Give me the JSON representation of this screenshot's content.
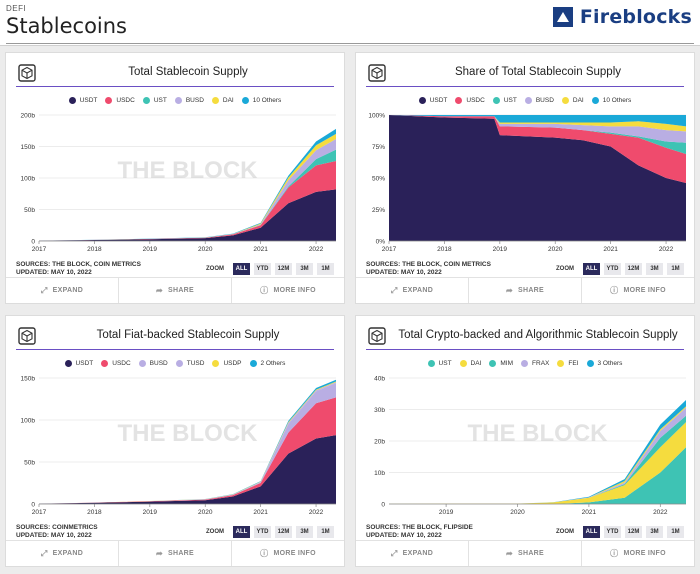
{
  "page": {
    "kicker": "DEFI",
    "title": "Stablecoins",
    "brand": "Fireblocks"
  },
  "colors": {
    "USDT": "#2a2159",
    "USDC": "#ef4b6d",
    "UST": "#3ec3b4",
    "BUSD": "#b9aee3",
    "DAI": "#f5dc3e",
    "TUSD": "#b9aee3",
    "USDP": "#f5dc3e",
    "MIM": "#3ec3b4",
    "FRAX": "#b9aee3",
    "FEI": "#f5dc3e",
    "Others": "#1aa9d8"
  },
  "watermark": "THE BLOCK",
  "zoom": {
    "label": "ZOOM",
    "options": [
      "ALL",
      "YTD",
      "12M",
      "3M",
      "1M"
    ],
    "active": "ALL"
  },
  "footer": {
    "expand": "EXPAND",
    "share": "SHARE",
    "more": "MORE INFO"
  },
  "cards": [
    {
      "title": "Total Stablecoin Supply",
      "sources": "SOURCES: THE BLOCK, COIN METRICS",
      "updated": "UPDATED: MAY 10, 2022"
    },
    {
      "title": "Share of Total Stablecoin Supply",
      "sources": "SOURCES: THE BLOCK, COIN METRICS",
      "updated": "UPDATED: MAY 10, 2022"
    },
    {
      "title": "Total Fiat-backed Stablecoin Supply",
      "sources": "SOURCES: COINMETRICS",
      "updated": "UPDATED: MAY 10, 2022"
    },
    {
      "title": "Total Crypto-backed and Algorithmic Stablecoin Supply",
      "sources": "SOURCES: THE BLOCK, FLIPSIDE",
      "updated": "UPDATED: MAY 10, 2022"
    }
  ],
  "chart_data": [
    {
      "type": "area",
      "stacked": true,
      "x": [
        "2017",
        "2018",
        "2019",
        "2020",
        "2020.5",
        "2021",
        "2021.5",
        "2022",
        "2022.36"
      ],
      "xticks": [
        "2017",
        "2018",
        "2019",
        "2020",
        "2021",
        "2022"
      ],
      "yticks": [
        "0",
        "50b",
        "100b",
        "150b",
        "200b"
      ],
      "ylim": [
        0,
        200
      ],
      "series": [
        {
          "name": "USDT",
          "values": [
            0.3,
            1.5,
            2.8,
            4.5,
            9,
            21,
            60,
            78,
            82
          ]
        },
        {
          "name": "USDC",
          "values": [
            0,
            0.2,
            0.5,
            0.7,
            1.5,
            4,
            25,
            42,
            45
          ]
        },
        {
          "name": "UST",
          "values": [
            0,
            0,
            0,
            0,
            0.1,
            0.3,
            1.5,
            10,
            18
          ]
        },
        {
          "name": "BUSD",
          "values": [
            0,
            0,
            0,
            0.2,
            0.3,
            1,
            10,
            14,
            17
          ]
        },
        {
          "name": "DAI",
          "values": [
            0,
            0.1,
            0.1,
            0.1,
            0.2,
            1.5,
            4,
            8,
            8
          ]
        },
        {
          "name": "10 Others",
          "values": [
            0,
            0.1,
            0.3,
            0.5,
            0.7,
            1,
            3,
            6,
            8
          ]
        }
      ]
    },
    {
      "type": "area",
      "stacked": true,
      "percent": true,
      "x": [
        "2017",
        "2018",
        "2018.9",
        "2019",
        "2020",
        "2020.5",
        "2021",
        "2021.5",
        "2022",
        "2022.36"
      ],
      "xticks": [
        "2017",
        "2018",
        "2019",
        "2020",
        "2021",
        "2022"
      ],
      "yticks": [
        "0%",
        "25%",
        "50%",
        "75%",
        "100%"
      ],
      "ylim": [
        0,
        100
      ],
      "series": [
        {
          "name": "USDT",
          "values": [
            100,
            98,
            97,
            84,
            82,
            80,
            75,
            60,
            50,
            46
          ]
        },
        {
          "name": "USDC",
          "values": [
            0,
            1,
            2,
            7,
            8,
            8,
            10,
            22,
            24,
            23
          ]
        },
        {
          "name": "UST",
          "values": [
            0,
            0,
            0,
            0,
            0,
            0,
            1,
            1,
            5,
            9
          ]
        },
        {
          "name": "BUSD",
          "values": [
            0,
            0,
            0,
            2,
            3,
            4,
            5,
            8,
            9,
            9
          ]
        },
        {
          "name": "DAI",
          "values": [
            0,
            0,
            0,
            1,
            1,
            2,
            3,
            4,
            5,
            4
          ]
        },
        {
          "name": "10 Others",
          "values": [
            0,
            1,
            1,
            6,
            6,
            6,
            6,
            5,
            7,
            9
          ]
        }
      ]
    },
    {
      "type": "area",
      "stacked": true,
      "x": [
        "2017",
        "2018",
        "2019",
        "2020",
        "2020.5",
        "2021",
        "2021.5",
        "2022",
        "2022.36"
      ],
      "xticks": [
        "2017",
        "2018",
        "2019",
        "2020",
        "2021",
        "2022"
      ],
      "yticks": [
        "0",
        "50b",
        "100b",
        "150b"
      ],
      "ylim": [
        0,
        150
      ],
      "series": [
        {
          "name": "USDT",
          "values": [
            0.3,
            1.5,
            2.8,
            4.5,
            9,
            21,
            60,
            78,
            82
          ]
        },
        {
          "name": "USDC",
          "values": [
            0,
            0.2,
            0.5,
            0.7,
            1.5,
            4,
            25,
            42,
            45
          ]
        },
        {
          "name": "BUSD",
          "values": [
            0,
            0,
            0,
            0.2,
            0.3,
            1,
            10,
            14,
            17
          ]
        },
        {
          "name": "TUSD",
          "values": [
            0,
            0,
            0.1,
            0.2,
            0.3,
            0.4,
            1.5,
            1.2,
            1
          ]
        },
        {
          "name": "USDP",
          "values": [
            0,
            0,
            0.1,
            0.2,
            0.3,
            0.4,
            0.9,
            0.9,
            0.9
          ]
        },
        {
          "name": "2 Others",
          "values": [
            0,
            0,
            0,
            0.1,
            0.3,
            0.5,
            1.5,
            2,
            2
          ]
        }
      ]
    },
    {
      "type": "area",
      "stacked": true,
      "x": [
        "2018.2",
        "2019",
        "2020",
        "2020.5",
        "2021",
        "2021.5",
        "2022",
        "2022.36"
      ],
      "xticks": [
        "2019",
        "2020",
        "2021",
        "2022"
      ],
      "yticks": [
        "0",
        "10b",
        "20b",
        "30b",
        "40b"
      ],
      "ylim": [
        0,
        40
      ],
      "series": [
        {
          "name": "UST",
          "values": [
            0,
            0,
            0,
            0,
            0.5,
            2,
            10,
            18
          ]
        },
        {
          "name": "DAI",
          "values": [
            0.05,
            0.1,
            0.1,
            0.5,
            1.5,
            4,
            8,
            8
          ]
        },
        {
          "name": "MIM",
          "values": [
            0,
            0,
            0,
            0,
            0,
            0.3,
            3,
            2
          ]
        },
        {
          "name": "FRAX",
          "values": [
            0,
            0,
            0,
            0,
            0.1,
            0.5,
            2.2,
            2.6
          ]
        },
        {
          "name": "FEI",
          "values": [
            0,
            0,
            0,
            0,
            0,
            0.5,
            0.5,
            0.4
          ]
        },
        {
          "name": "3 Others",
          "values": [
            0,
            0,
            0,
            0.05,
            0.2,
            0.6,
            1.5,
            2
          ]
        }
      ]
    }
  ]
}
